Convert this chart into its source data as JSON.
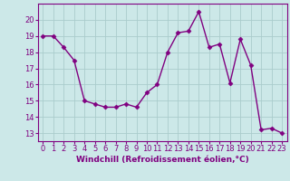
{
  "x": [
    0,
    1,
    2,
    3,
    4,
    5,
    6,
    7,
    8,
    9,
    10,
    11,
    12,
    13,
    14,
    15,
    16,
    17,
    18,
    19,
    20,
    21,
    22,
    23
  ],
  "y": [
    19.0,
    19.0,
    18.3,
    17.5,
    15.0,
    14.8,
    14.6,
    14.6,
    14.8,
    14.6,
    15.5,
    16.0,
    18.0,
    19.2,
    19.3,
    20.5,
    18.3,
    18.5,
    16.1,
    18.8,
    17.2,
    13.2,
    13.3,
    13.0
  ],
  "line_color": "#800080",
  "marker": "D",
  "marker_size": 2.5,
  "bg_color": "#cce8e8",
  "grid_color": "#aacccc",
  "xlabel": "Windchill (Refroidissement éolien,°C)",
  "xlim": [
    -0.5,
    23.5
  ],
  "ylim": [
    12.5,
    21.0
  ],
  "yticks": [
    13,
    14,
    15,
    16,
    17,
    18,
    19,
    20
  ],
  "xticks": [
    0,
    1,
    2,
    3,
    4,
    5,
    6,
    7,
    8,
    9,
    10,
    11,
    12,
    13,
    14,
    15,
    16,
    17,
    18,
    19,
    20,
    21,
    22,
    23
  ],
  "xlabel_fontsize": 6.5,
  "tick_fontsize": 6.0,
  "line_width": 1.0
}
